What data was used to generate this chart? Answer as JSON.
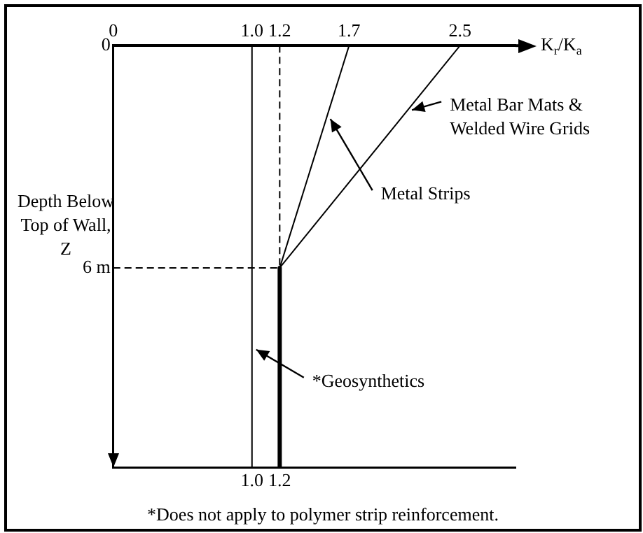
{
  "chart_data": {
    "type": "line",
    "x2label": "K$_{r}$/K$_{a}$",
    "ylabel": "Depth Below Top of Wall, Z",
    "xlim": [
      0,
      2.9
    ],
    "xticks": [
      {
        "value": 1,
        "label": "1.0"
      },
      {
        "value": 1.2,
        "label": "1.2"
      }
    ],
    "x2lim": [
      0,
      2.9
    ],
    "x2ticks": [
      0,
      {
        "value": 1,
        "label": "1.0"
      },
      {
        "value": 1.2,
        "label": "1.2"
      },
      {
        "value": 1.7,
        "label": "1.7"
      },
      {
        "value": 2.5,
        "label": "2.5"
      }
    ],
    "ylim": [
      11.4,
      0
    ],
    "yticks": [
      0,
      {
        "value": 6,
        "label": "6 m"
      }
    ],
    "series": [
      {
        "name": "Metal Bar Mats & Welded Wire Grids",
        "color": "#000000",
        "x": [
          2.5,
          1.2,
          1.2
        ],
        "values": [
          0,
          6,
          11.4
        ]
      },
      {
        "name": "Metal Strips",
        "color": "#000000",
        "x": [
          1.7,
          1.2
        ],
        "values": [
          0,
          6
        ]
      },
      {
        "name": "*Geosynthetics",
        "color": "#000000",
        "x": [
          1,
          1
        ],
        "values": [
          0,
          11.4
        ]
      },
      {
        "color": "#000000",
        "x": [
          1.2,
          1.2
        ],
        "values": [
          0,
          6
        ],
        "line_style": "dashed"
      },
      {
        "color": "#000000",
        "x": [
          0,
          1.2
        ],
        "values": [
          6,
          6
        ],
        "line_style": "dashed"
      }
    ],
    "annotations": [
      "*Does not apply to polymer strip reinforcement."
    ],
    "grid": false,
    "marker": "none",
    "line_style": "solid"
  }
}
